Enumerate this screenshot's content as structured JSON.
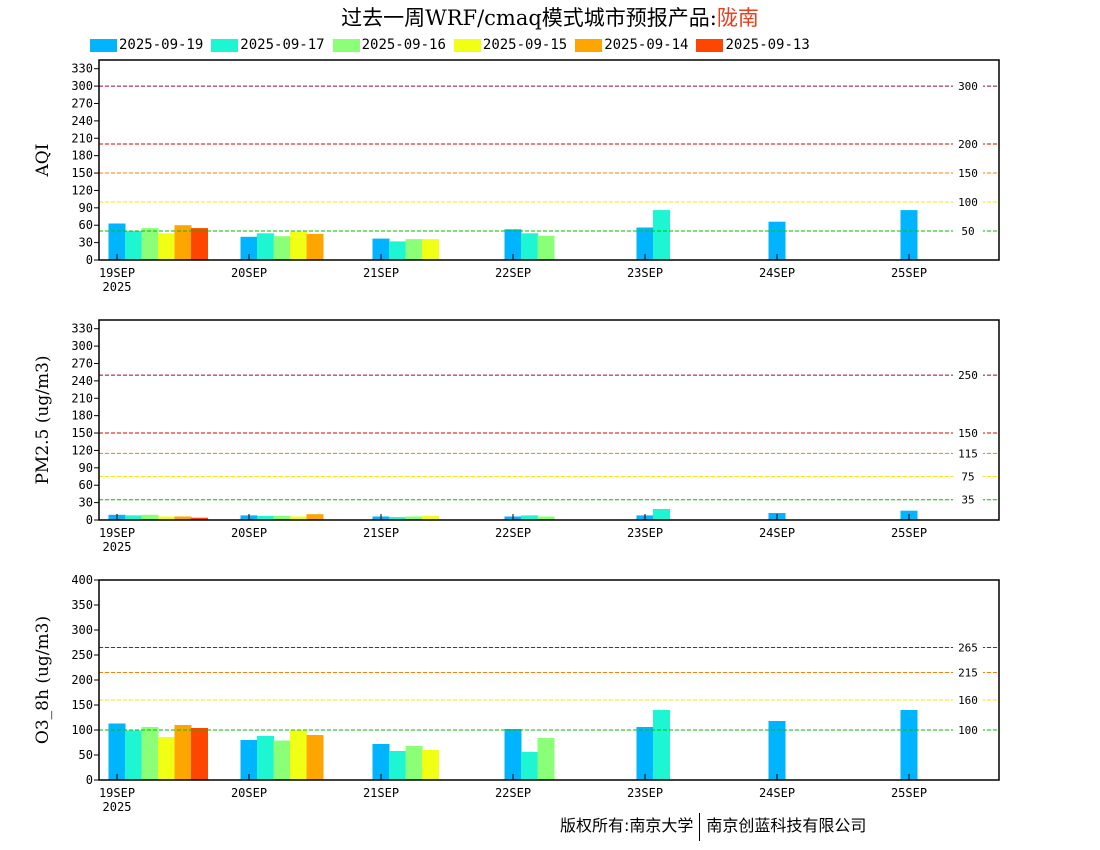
{
  "title": {
    "prefix": "过去一周WRF/cmaq模式城市预报产品:",
    "city": "陇南",
    "city_color": "#e8401e"
  },
  "legend": [
    {
      "label": "2025-09-19",
      "color": "#00b4ff"
    },
    {
      "label": "2025-09-17",
      "color": "#1ef5d2"
    },
    {
      "label": "2025-09-16",
      "color": "#8cff78"
    },
    {
      "label": "2025-09-15",
      "color": "#f0ff14"
    },
    {
      "label": "2025-09-14",
      "color": "#ffa500"
    },
    {
      "label": "2025-09-13",
      "color": "#ff4600"
    }
  ],
  "copyright": {
    "left": "版权所有:南京大学",
    "right": "南京创蓝科技有限公司"
  },
  "chart_data": [
    {
      "type": "bar",
      "ylabel": "AQI",
      "ylim": [
        0,
        345
      ],
      "yticks": [
        0,
        30,
        60,
        90,
        120,
        150,
        180,
        210,
        240,
        270,
        300,
        330
      ],
      "categories": [
        "19SEP",
        "20SEP",
        "21SEP",
        "22SEP",
        "23SEP",
        "24SEP",
        "25SEP"
      ],
      "first_category_sub": "2025",
      "thresholds": [
        {
          "value": 300,
          "label": "300",
          "color": "#a0004a"
        },
        {
          "value": 200,
          "label": "200",
          "color": "#dd0000"
        },
        {
          "value": 150,
          "label": "150",
          "color": "#ff7e00"
        },
        {
          "value": 100,
          "label": "100",
          "color": "#ffe600"
        },
        {
          "value": 50,
          "label": "50",
          "color": "#00c000"
        }
      ],
      "series": [
        {
          "name": "2025-09-19",
          "values": [
            63,
            40,
            37,
            53,
            56,
            66,
            86
          ]
        },
        {
          "name": "2025-09-17",
          "values": [
            50,
            46,
            32,
            46,
            86,
            null,
            null
          ]
        },
        {
          "name": "2025-09-16",
          "values": [
            55,
            41,
            36,
            42,
            null,
            null,
            null
          ]
        },
        {
          "name": "2025-09-15",
          "values": [
            46,
            49,
            36,
            null,
            null,
            null,
            null
          ]
        },
        {
          "name": "2025-09-14",
          "values": [
            60,
            45,
            null,
            null,
            null,
            null,
            null
          ]
        },
        {
          "name": "2025-09-13",
          "values": [
            55,
            null,
            null,
            null,
            null,
            null,
            null
          ]
        }
      ]
    },
    {
      "type": "bar",
      "ylabel": "PM2.5 (ug/m3)",
      "ylim": [
        0,
        345
      ],
      "yticks": [
        0,
        30,
        60,
        90,
        120,
        150,
        180,
        210,
        240,
        270,
        300,
        330
      ],
      "categories": [
        "19SEP",
        "20SEP",
        "21SEP",
        "22SEP",
        "23SEP",
        "24SEP",
        "25SEP"
      ],
      "first_category_sub": "2025",
      "thresholds": [
        {
          "value": 250,
          "label": "250",
          "color": "#a0004a"
        },
        {
          "value": 150,
          "label": "150",
          "color": "#dd0000"
        },
        {
          "value": 115,
          "label": "115",
          "color": "#ff7e00"
        },
        {
          "value": 75,
          "label": "75",
          "color": "#ffe600"
        },
        {
          "value": 35,
          "label": "35",
          "color": "#00c000"
        }
      ],
      "series": [
        {
          "name": "2025-09-19",
          "values": [
            9,
            8,
            6,
            6,
            8,
            12,
            16
          ]
        },
        {
          "name": "2025-09-17",
          "values": [
            8,
            7,
            5,
            8,
            19,
            null,
            null
          ]
        },
        {
          "name": "2025-09-16",
          "values": [
            9,
            7,
            6,
            6,
            null,
            null,
            null
          ]
        },
        {
          "name": "2025-09-15",
          "values": [
            6,
            6,
            7,
            null,
            null,
            null,
            null
          ]
        },
        {
          "name": "2025-09-14",
          "values": [
            6,
            10,
            null,
            null,
            null,
            null,
            null
          ]
        },
        {
          "name": "2025-09-13",
          "values": [
            4,
            null,
            null,
            null,
            null,
            null,
            null
          ]
        }
      ]
    },
    {
      "type": "bar",
      "ylabel": "O3_8h (ug/m3)",
      "ylim": [
        0,
        400
      ],
      "yticks": [
        0,
        50,
        100,
        150,
        200,
        250,
        300,
        350,
        400
      ],
      "categories": [
        "19SEP",
        "20SEP",
        "21SEP",
        "22SEP",
        "23SEP",
        "24SEP",
        "25SEP"
      ],
      "first_category_sub": "2025",
      "thresholds": [
        {
          "value": 265,
          "label": "265",
          "color": "#dd0000"
        },
        {
          "value": 215,
          "label": "215",
          "color": "#ff7e00"
        },
        {
          "value": 160,
          "label": "160",
          "color": "#ffe600"
        },
        {
          "value": 100,
          "label": "100",
          "color": "#00c000"
        }
      ],
      "series": [
        {
          "name": "2025-09-19",
          "values": [
            113,
            80,
            72,
            102,
            106,
            118,
            140
          ]
        },
        {
          "name": "2025-09-17",
          "values": [
            99,
            88,
            58,
            56,
            140,
            null,
            null
          ]
        },
        {
          "name": "2025-09-16",
          "values": [
            106,
            79,
            68,
            84,
            null,
            null,
            null
          ]
        },
        {
          "name": "2025-09-15",
          "values": [
            86,
            99,
            60,
            null,
            null,
            null,
            null
          ]
        },
        {
          "name": "2025-09-14",
          "values": [
            110,
            90,
            null,
            null,
            null,
            null,
            null
          ]
        },
        {
          "name": "2025-09-13",
          "values": [
            104,
            null,
            null,
            null,
            null,
            null,
            null
          ]
        }
      ]
    }
  ]
}
